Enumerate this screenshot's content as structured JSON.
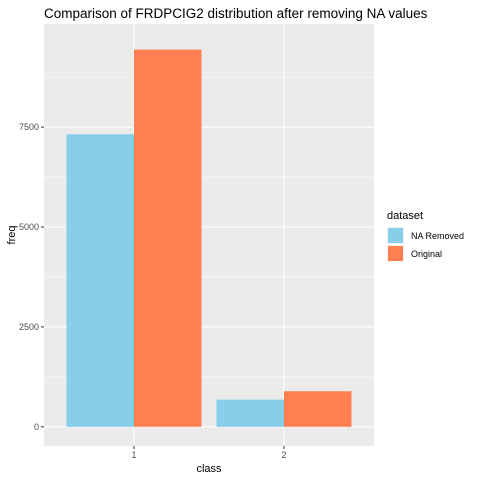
{
  "chart_data": {
    "type": "bar",
    "title": "Comparison of FRDPCIG2 distribution after removing NA values",
    "xlabel": "class",
    "ylabel": "freq",
    "categories": [
      "1",
      "2"
    ],
    "series": [
      {
        "name": "NA Removed",
        "values": [
          7320,
          680
        ],
        "color": "#87CEEB"
      },
      {
        "name": "Original",
        "values": [
          9440,
          890
        ],
        "color": "#FF7F50"
      }
    ],
    "ylim": [
      -480,
      10080
    ],
    "yticks": [
      0,
      2500,
      5000,
      7500
    ],
    "ytick_labels": [
      "0",
      "2500",
      "5000",
      "7500"
    ],
    "legend": {
      "title": "dataset",
      "position": "right"
    },
    "grid": true,
    "panel_background": "#EBEBEB",
    "grid_color": "#FFFFFF"
  }
}
